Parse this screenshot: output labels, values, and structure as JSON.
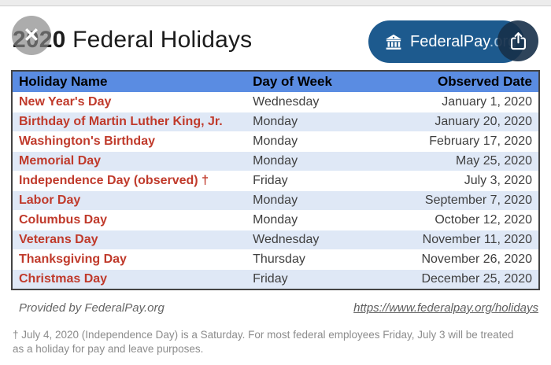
{
  "header": {
    "title_year": "2020",
    "title_rest": " Federal Holidays",
    "close_glyph": "✕",
    "brand_label": "FederalPay",
    "brand_suffix": ".org"
  },
  "table": {
    "columns": [
      "Holiday Name",
      "Day of Week",
      "Observed Date"
    ],
    "rows": [
      {
        "name": "New Year's Day",
        "day": "Wednesday",
        "date": "January 1, 2020"
      },
      {
        "name": "Birthday of Martin Luther King, Jr.",
        "day": "Monday",
        "date": "January 20, 2020"
      },
      {
        "name": "Washington's Birthday",
        "day": "Monday",
        "date": "February 17, 2020"
      },
      {
        "name": "Memorial Day",
        "day": "Monday",
        "date": "May 25, 2020"
      },
      {
        "name": "Independence Day (observed) †",
        "day": "Friday",
        "date": "July 3, 2020"
      },
      {
        "name": "Labor Day",
        "day": "Monday",
        "date": "September 7, 2020"
      },
      {
        "name": "Columbus Day",
        "day": "Monday",
        "date": "October 12, 2020"
      },
      {
        "name": "Veterans Day",
        "day": "Wednesday",
        "date": "November 11, 2020"
      },
      {
        "name": "Thanksgiving Day",
        "day": "Thursday",
        "date": "November 26, 2020"
      },
      {
        "name": "Christmas Day",
        "day": "Friday",
        "date": "December 25, 2020"
      }
    ]
  },
  "footer": {
    "provided_by": "Provided by FederalPay.org",
    "link_text": "https://www.federalpay.org/holidays",
    "footnote": "† July 4, 2020 (Independence Day) is a Saturday. For most federal employees Friday, July 3 will be treated as a holiday for pay and leave purposes."
  },
  "icons": {
    "close": "close-icon",
    "bank": "bank-building-icon",
    "share": "share-icon"
  },
  "colors": {
    "header_blue": "#5a8ce2",
    "row_alt_blue": "#dfe8f6",
    "holiday_red": "#c03a2b",
    "cell_text": "#3f3f3f",
    "pill_blue": "#1d5a8e",
    "share_navy": "#223d59",
    "table_border": "#444444",
    "footer_gray": "#666666",
    "footnote_gray": "#8c8c8c"
  }
}
